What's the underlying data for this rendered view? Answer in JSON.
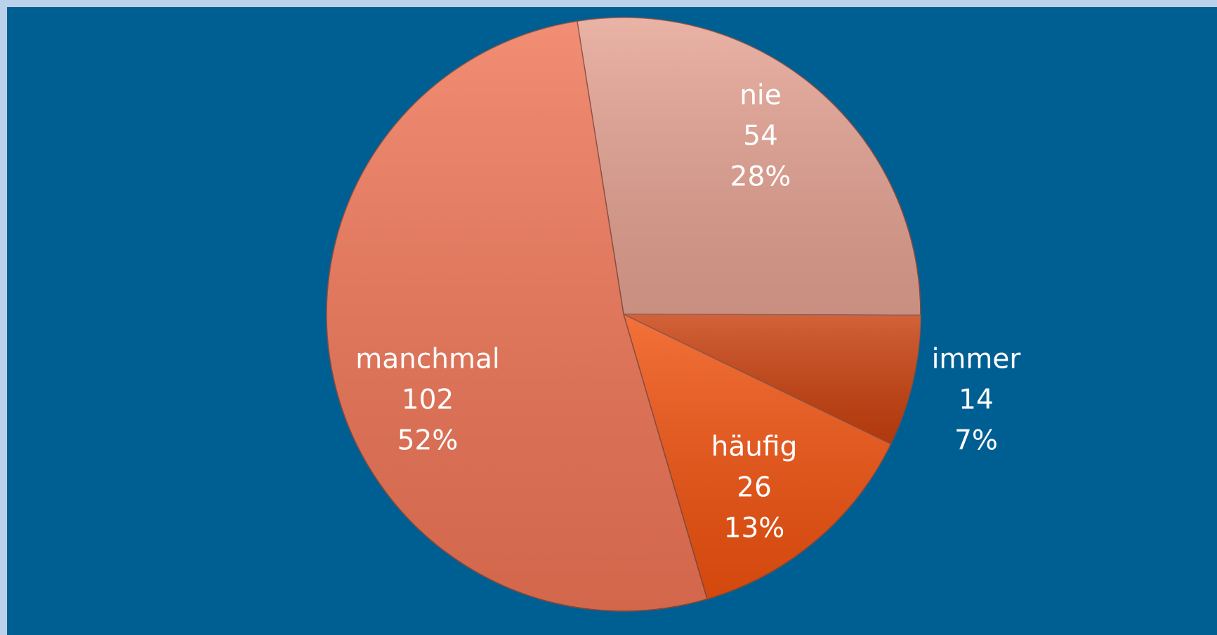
{
  "chart_data": {
    "type": "pie",
    "categories": [
      "nie",
      "immer",
      "häufig",
      "manchmal"
    ],
    "values": [
      54,
      14,
      26,
      102
    ],
    "percentages": [
      {
        "value": 28,
        "label": "28%"
      },
      {
        "value": 7,
        "label": "7%"
      },
      {
        "value": 13,
        "label": "13%"
      },
      {
        "value": 52,
        "label": "52%"
      }
    ],
    "colors": [
      "#e4a292",
      "#c9400e",
      "#f0520f",
      "#ef7556"
    ]
  }
}
